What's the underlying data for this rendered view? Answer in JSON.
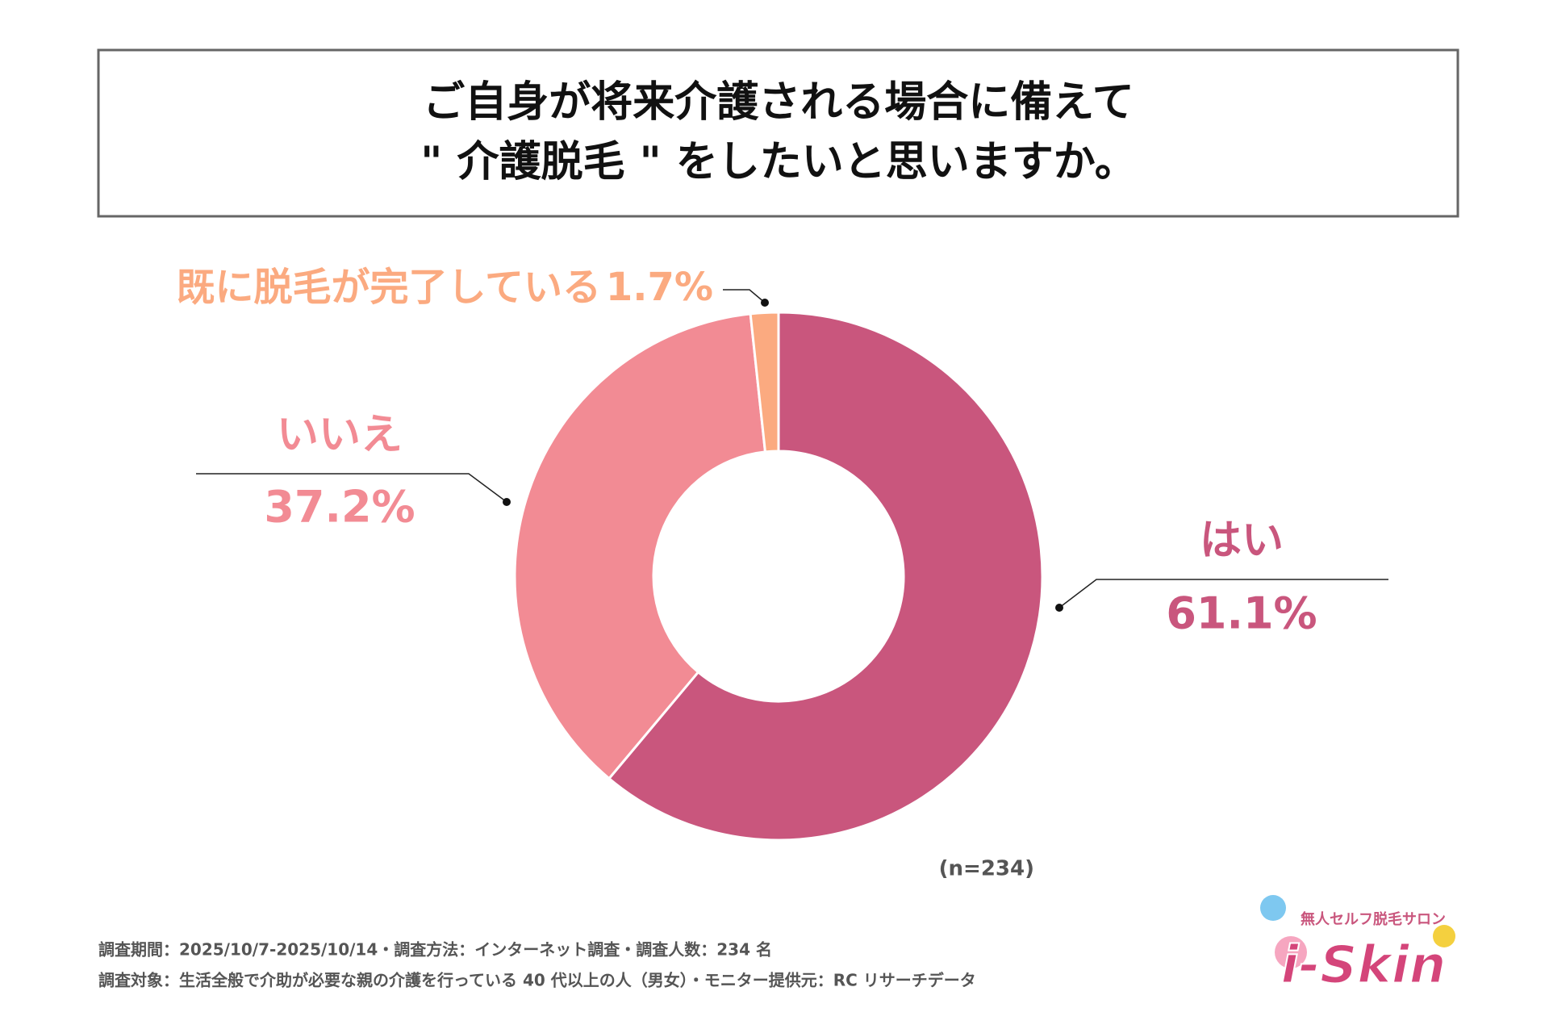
{
  "chart_data": {
    "type": "donut",
    "title": [
      "ご自身が将来介護される場合に備えて",
      "\" 介護脱毛 \" をしたいと思いますか。"
    ],
    "categories": [
      "はい",
      "いいえ",
      "既に脱毛が完了している"
    ],
    "values": [
      61.1,
      37.2,
      1.7
    ],
    "value_labels": [
      "61.1%",
      "37.2%",
      "1.7%"
    ],
    "colors": [
      "#c9567d",
      "#f28b94",
      "#fbaa80"
    ],
    "note": "(n=234)"
  },
  "footer": [
    "調査期間：2025/10/7-2025/10/14・調査方法：インターネット調査・調査人数：234 名",
    "調査対象：生活全般で介助が必要な親の介護を行っている 40 代以上の人（男女）・モニター提供元：RC リサーチデータ"
  ],
  "logo": {
    "tagline": "無人セルフ脱毛サロン",
    "name": "i-Skin"
  }
}
